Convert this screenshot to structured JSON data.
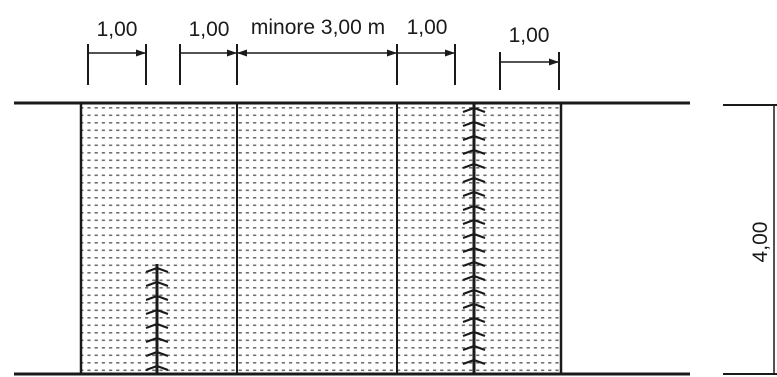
{
  "dimensions": {
    "left_band": "1,00",
    "left_strip": "1,00",
    "center": "minore 3,00 m",
    "right_strip": "1,00",
    "right_band": "1,00",
    "height": "4,00"
  },
  "colors": {
    "ink": "#1a1a1a",
    "dots": "#6e6e6e",
    "background": "#ffffff"
  }
}
